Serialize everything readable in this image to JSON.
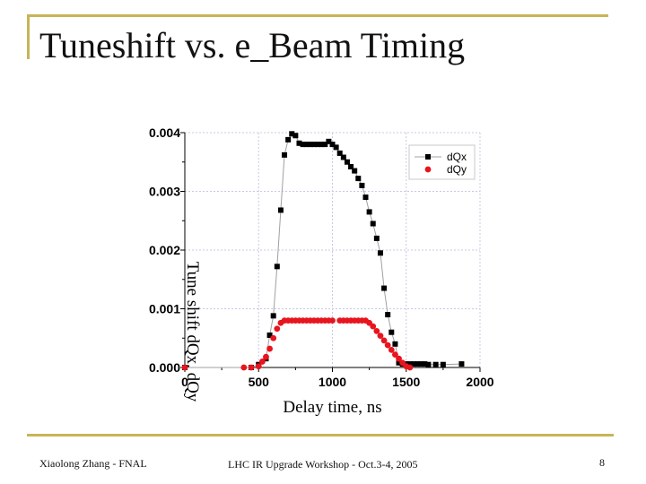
{
  "slide": {
    "title": "Tuneshift vs. e_Beam Timing",
    "footer_left": "Xiaolong Zhang - FNAL",
    "footer_center": "LHC IR Upgrade Workshop - Oct.3-4, 2005",
    "page_number": "8",
    "accent_color": "#c8b458"
  },
  "chart_data": {
    "type": "scatter",
    "title": "",
    "xlabel": "Delay time, ns",
    "ylabel": "Tune shift dQx, dQy",
    "xlim": [
      0,
      2000
    ],
    "ylim": [
      0,
      0.004
    ],
    "x_ticks": [
      "0",
      "500",
      "1000",
      "1500",
      "2000"
    ],
    "y_ticks": [
      "0.000",
      "0.001",
      "0.002",
      "0.003",
      "0.004"
    ],
    "grid": true,
    "legend_position": "top-right",
    "series": [
      {
        "name": "dQx",
        "color": "#000000",
        "marker": "square",
        "connected": true,
        "x": [
          0,
          450,
          500,
          550,
          575,
          600,
          625,
          650,
          675,
          700,
          725,
          750,
          775,
          800,
          825,
          850,
          875,
          900,
          925,
          950,
          975,
          1000,
          1025,
          1050,
          1075,
          1100,
          1125,
          1150,
          1175,
          1200,
          1225,
          1250,
          1275,
          1300,
          1325,
          1350,
          1375,
          1400,
          1425,
          1450,
          1475,
          1500,
          1525,
          1550,
          1575,
          1600,
          1625,
          1650,
          1700,
          1750,
          1875
        ],
        "y": [
          0.0,
          0.0,
          5e-05,
          0.00015,
          0.00055,
          0.00088,
          0.00172,
          0.00268,
          0.00362,
          0.00388,
          0.00398,
          0.00395,
          0.00382,
          0.0038,
          0.0038,
          0.0038,
          0.0038,
          0.0038,
          0.0038,
          0.0038,
          0.00385,
          0.0038,
          0.00375,
          0.00365,
          0.00358,
          0.0035,
          0.00342,
          0.00335,
          0.00322,
          0.0031,
          0.0029,
          0.00265,
          0.00245,
          0.0022,
          0.00195,
          0.00135,
          0.0009,
          0.0006,
          0.0004,
          8e-05,
          6e-05,
          6e-05,
          6e-05,
          6e-05,
          6e-05,
          6e-05,
          6e-05,
          5e-05,
          5e-05,
          5e-05,
          6e-05
        ]
      },
      {
        "name": "dQy",
        "color": "#e8141e",
        "marker": "circle",
        "connected": false,
        "x": [
          0,
          400,
          450,
          500,
          525,
          550,
          575,
          600,
          625,
          650,
          675,
          700,
          725,
          750,
          775,
          800,
          825,
          850,
          875,
          900,
          925,
          950,
          975,
          1000,
          1050,
          1075,
          1100,
          1125,
          1150,
          1175,
          1200,
          1225,
          1250,
          1275,
          1300,
          1325,
          1350,
          1375,
          1400,
          1425,
          1450,
          1475,
          1500,
          1525
        ],
        "y": [
          0.0,
          0.0,
          0.0,
          2e-05,
          0.0001,
          0.00018,
          0.00032,
          0.0005,
          0.00066,
          0.00076,
          0.0008,
          0.0008,
          0.0008,
          0.0008,
          0.0008,
          0.0008,
          0.0008,
          0.0008,
          0.0008,
          0.0008,
          0.0008,
          0.0008,
          0.0008,
          0.0008,
          0.0008,
          0.0008,
          0.0008,
          0.0008,
          0.0008,
          0.0008,
          0.0008,
          0.0008,
          0.00076,
          0.0007,
          0.00062,
          0.00054,
          0.00046,
          0.00038,
          0.0003,
          0.00022,
          0.00015,
          8e-05,
          2e-05,
          0.0
        ]
      }
    ]
  }
}
